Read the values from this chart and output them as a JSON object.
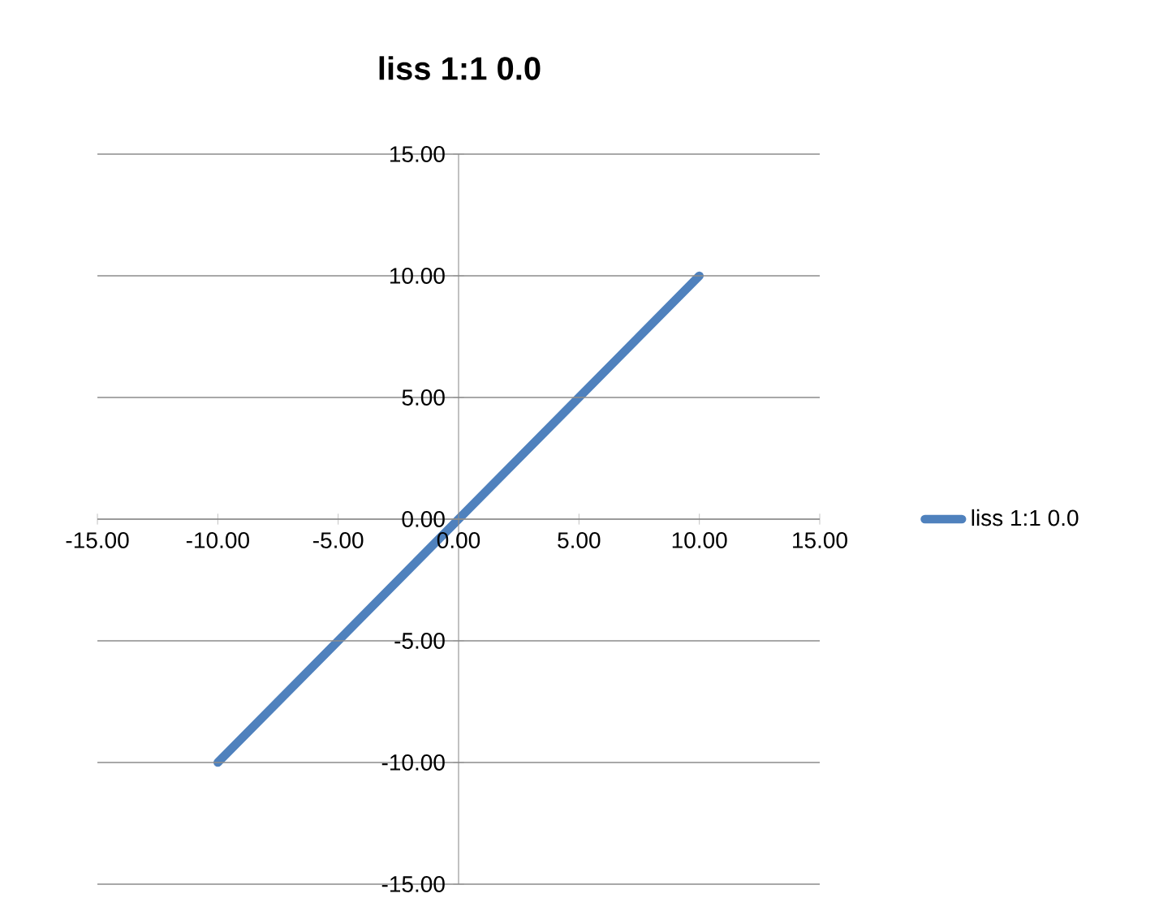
{
  "chart_data": {
    "type": "line",
    "title": "liss 1:1  0.0",
    "series": [
      {
        "name": "liss 1:1  0.0",
        "color": "#4f81bd",
        "x": [
          -10,
          -5,
          0,
          5,
          10
        ],
        "values": [
          -10,
          -5,
          0,
          5,
          10
        ]
      }
    ],
    "xlim": [
      -15,
      15
    ],
    "ylim": [
      -15,
      15
    ],
    "xticks": [
      {
        "value": -15,
        "label": "-15.00"
      },
      {
        "value": -10,
        "label": "-10.00"
      },
      {
        "value": -5,
        "label": "-5.00"
      },
      {
        "value": 0,
        "label": "0.00"
      },
      {
        "value": 5,
        "label": "5.00"
      },
      {
        "value": 10,
        "label": "10.00"
      },
      {
        "value": 15,
        "label": "15.00"
      }
    ],
    "yticks": [
      {
        "value": -15,
        "label": "-15.00"
      },
      {
        "value": -10,
        "label": "-10.00"
      },
      {
        "value": -5,
        "label": "-5.00"
      },
      {
        "value": 0,
        "label": "0.00"
      },
      {
        "value": 5,
        "label": "5.00"
      },
      {
        "value": 10,
        "label": "10.00"
      },
      {
        "value": 15,
        "label": "15.00"
      }
    ],
    "grid": "y",
    "legend": "right",
    "marker": "none",
    "line_style": "solid"
  }
}
